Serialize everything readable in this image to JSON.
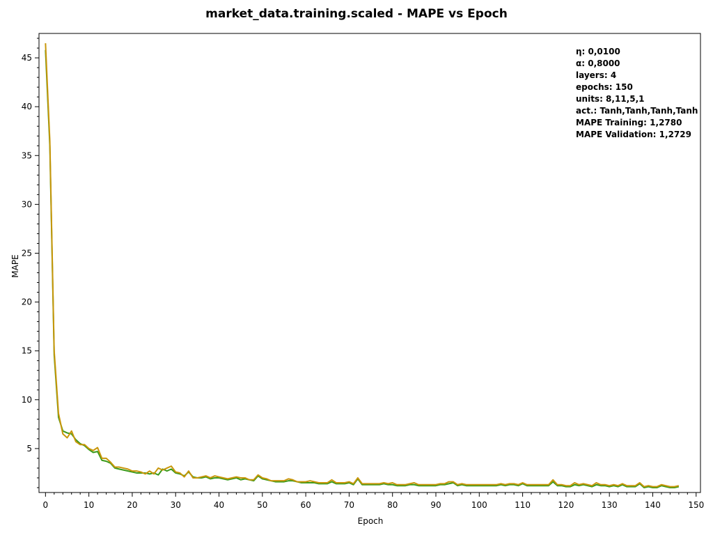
{
  "chart_data": {
    "type": "line",
    "title": "market_data.training.scaled - MAPE vs Epoch",
    "xlabel": "Epoch",
    "ylabel": "MAPE",
    "xlim": [
      -1.5,
      151
    ],
    "ylim": [
      0.5,
      47.5
    ],
    "x_ticks": [
      0,
      10,
      20,
      30,
      40,
      50,
      60,
      70,
      80,
      90,
      100,
      110,
      120,
      130,
      140,
      150
    ],
    "y_ticks": [
      5,
      10,
      15,
      20,
      25,
      30,
      35,
      40,
      45
    ],
    "grid": false,
    "legend": "none",
    "info_lines": [
      "η: 0,0100",
      "α: 0,8000",
      "layers: 4",
      "epochs: 150",
      "units: 8,11,5,1",
      "act.: Tanh,Tanh,Tanh,Tanh",
      "MAPE Training: 1,2780",
      "MAPE Validation: 1,2729"
    ],
    "series": [
      {
        "color": "#3a9a1a",
        "values": [
          45.8,
          36.0,
          14.6,
          8.2,
          6.8,
          6.6,
          6.5,
          5.9,
          5.5,
          5.3,
          4.9,
          4.6,
          4.7,
          3.8,
          3.7,
          3.5,
          3.0,
          2.9,
          2.8,
          2.7,
          2.6,
          2.5,
          2.5,
          2.5,
          2.4,
          2.5,
          2.3,
          2.9,
          2.7,
          2.9,
          2.5,
          2.4,
          2.2,
          2.6,
          2.1,
          2.0,
          2.0,
          2.1,
          1.9,
          2.0,
          2.0,
          1.9,
          1.8,
          1.9,
          2.0,
          1.8,
          1.9,
          1.8,
          1.7,
          2.2,
          1.9,
          1.8,
          1.7,
          1.6,
          1.6,
          1.6,
          1.7,
          1.7,
          1.6,
          1.5,
          1.5,
          1.5,
          1.5,
          1.4,
          1.4,
          1.4,
          1.6,
          1.4,
          1.4,
          1.4,
          1.5,
          1.3,
          1.9,
          1.3,
          1.3,
          1.3,
          1.3,
          1.3,
          1.4,
          1.3,
          1.3,
          1.2,
          1.2,
          1.2,
          1.3,
          1.3,
          1.2,
          1.2,
          1.2,
          1.2,
          1.2,
          1.3,
          1.3,
          1.4,
          1.5,
          1.2,
          1.3,
          1.2,
          1.2,
          1.2,
          1.2,
          1.2,
          1.2,
          1.2,
          1.2,
          1.3,
          1.2,
          1.3,
          1.3,
          1.2,
          1.4,
          1.2,
          1.2,
          1.2,
          1.2,
          1.2,
          1.2,
          1.6,
          1.2,
          1.2,
          1.1,
          1.1,
          1.3,
          1.2,
          1.3,
          1.2,
          1.1,
          1.3,
          1.2,
          1.2,
          1.1,
          1.2,
          1.1,
          1.3,
          1.1,
          1.1,
          1.1,
          1.4,
          1.0,
          1.1,
          1.0,
          1.0,
          1.2,
          1.1,
          1.0,
          1.0,
          1.1
        ]
      },
      {
        "color": "#c8960a",
        "values": [
          46.5,
          36.5,
          15.0,
          8.6,
          6.5,
          6.1,
          6.8,
          5.7,
          5.4,
          5.4,
          5.0,
          4.8,
          5.1,
          4.0,
          4.0,
          3.6,
          3.1,
          3.1,
          3.0,
          2.9,
          2.7,
          2.7,
          2.6,
          2.4,
          2.7,
          2.4,
          3.0,
          2.8,
          3.0,
          3.2,
          2.6,
          2.5,
          2.1,
          2.7,
          2.0,
          2.0,
          2.1,
          2.2,
          2.0,
          2.2,
          2.1,
          2.0,
          1.9,
          2.0,
          2.1,
          2.0,
          2.0,
          1.8,
          1.8,
          2.3,
          2.0,
          1.9,
          1.7,
          1.7,
          1.7,
          1.7,
          1.9,
          1.8,
          1.6,
          1.6,
          1.6,
          1.7,
          1.6,
          1.5,
          1.5,
          1.5,
          1.8,
          1.5,
          1.5,
          1.5,
          1.6,
          1.4,
          2.0,
          1.4,
          1.4,
          1.4,
          1.4,
          1.4,
          1.5,
          1.4,
          1.5,
          1.3,
          1.3,
          1.3,
          1.4,
          1.5,
          1.3,
          1.3,
          1.3,
          1.3,
          1.3,
          1.4,
          1.4,
          1.6,
          1.6,
          1.3,
          1.4,
          1.3,
          1.3,
          1.3,
          1.3,
          1.3,
          1.3,
          1.3,
          1.3,
          1.4,
          1.3,
          1.4,
          1.4,
          1.3,
          1.5,
          1.3,
          1.3,
          1.3,
          1.3,
          1.3,
          1.3,
          1.8,
          1.3,
          1.3,
          1.2,
          1.2,
          1.5,
          1.3,
          1.4,
          1.3,
          1.2,
          1.5,
          1.3,
          1.3,
          1.2,
          1.3,
          1.2,
          1.4,
          1.2,
          1.2,
          1.2,
          1.5,
          1.1,
          1.2,
          1.1,
          1.1,
          1.3,
          1.2,
          1.1,
          1.1,
          1.2
        ]
      }
    ]
  }
}
